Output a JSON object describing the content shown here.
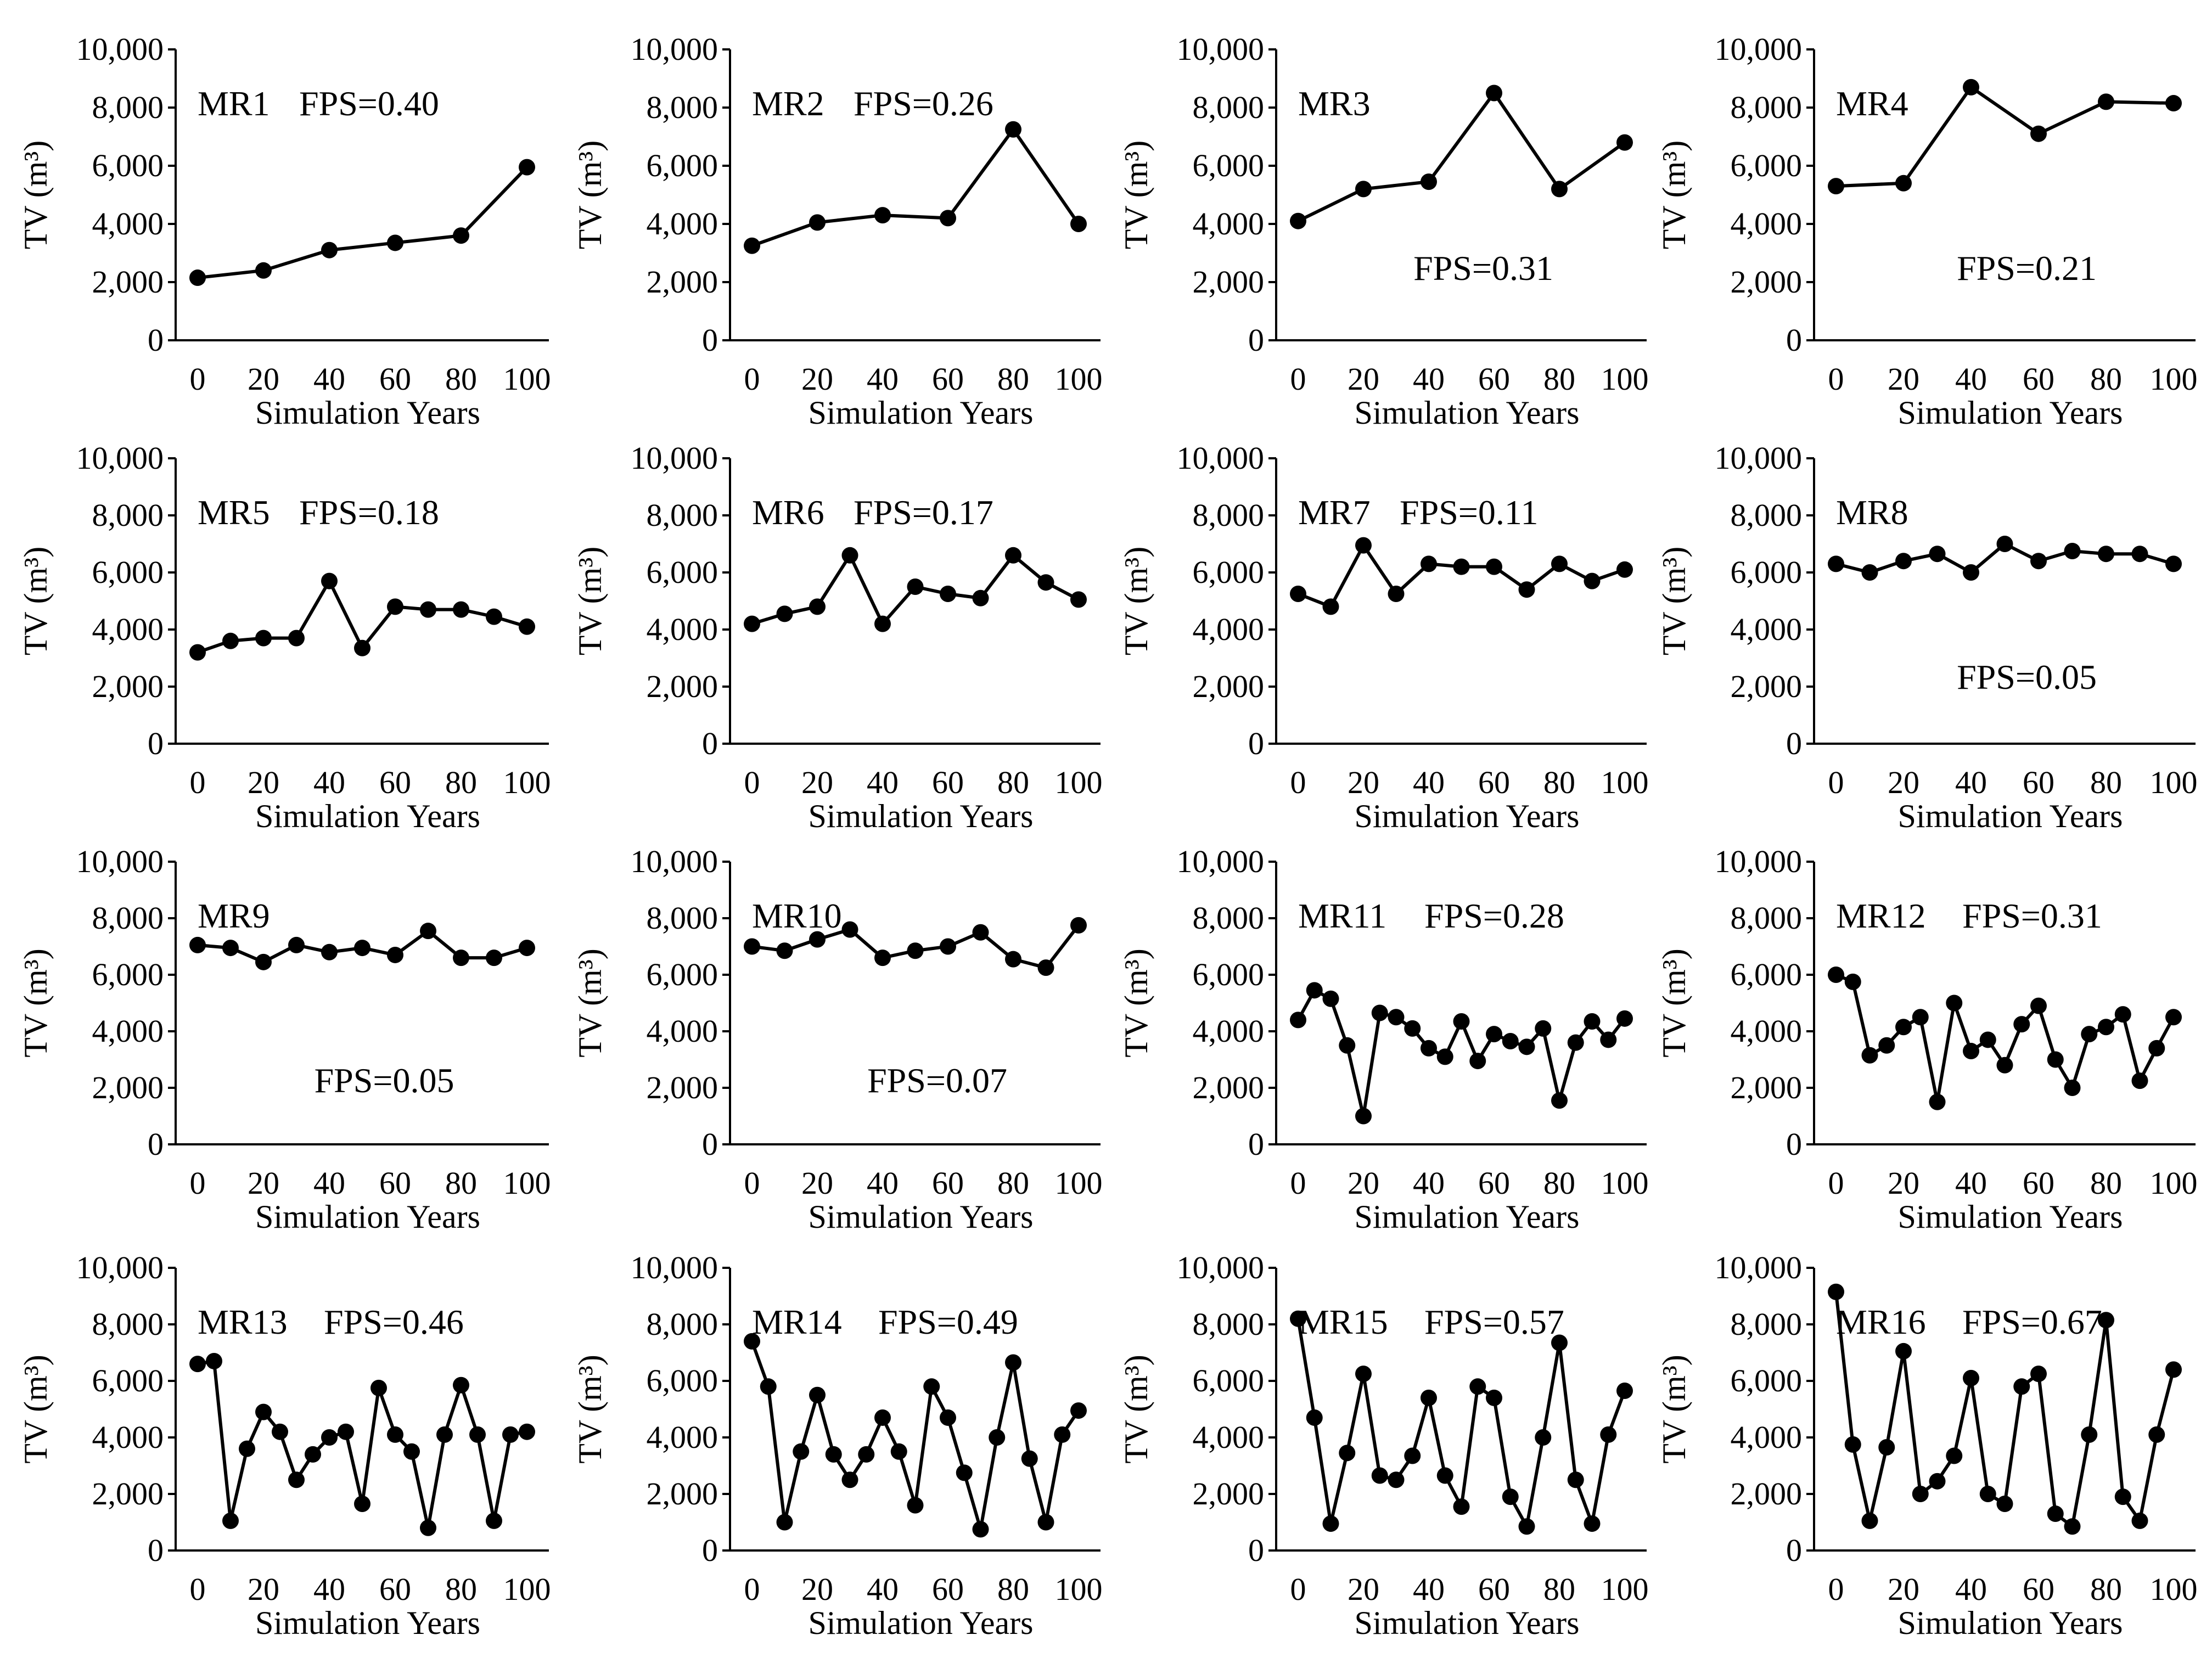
{
  "figure": {
    "title": ""
  },
  "style": {
    "line_color": "#000000",
    "marker_color": "#000000",
    "background": "#ffffff"
  },
  "chart_data": [
    {
      "type": "line",
      "panel": "MR1",
      "label": "MR1",
      "fps": "FPS=0.40",
      "x": [
        0,
        20,
        40,
        60,
        80,
        100
      ],
      "values": [
        2150,
        2400,
        3100,
        3350,
        3600,
        5950
      ],
      "xlabel": "Simulation Years",
      "ylabel": "TV (m³)",
      "ylim": [
        0,
        10000
      ],
      "xticks": [
        "0",
        "20",
        "40",
        "60",
        "80",
        "100"
      ],
      "yticks": [
        "0",
        "2,000",
        "4,000",
        "6,000",
        "8,000",
        "10,000"
      ]
    },
    {
      "type": "line",
      "panel": "MR2",
      "label": "MR2",
      "fps": "FPS=0.26",
      "x": [
        0,
        20,
        40,
        60,
        80,
        100
      ],
      "values": [
        3250,
        4050,
        4300,
        4200,
        7250,
        4000
      ],
      "xlabel": "Simulation Years",
      "ylabel": "TV (m³)",
      "ylim": [
        0,
        10000
      ],
      "xticks": [
        "0",
        "20",
        "40",
        "60",
        "80",
        "100"
      ],
      "yticks": [
        "0",
        "2,000",
        "4,000",
        "6,000",
        "8,000",
        "10,000"
      ]
    },
    {
      "type": "line",
      "panel": "MR3",
      "label": "MR3",
      "fps": "FPS=0.31",
      "x": [
        0,
        20,
        40,
        60,
        80,
        100
      ],
      "values": [
        4100,
        5200,
        5450,
        8500,
        5200,
        6800
      ],
      "xlabel": "Simulation Years",
      "ylabel": "TV (m³)",
      "ylim": [
        0,
        10000
      ],
      "xticks": [
        "0",
        "20",
        "40",
        "60",
        "80",
        "100"
      ],
      "yticks": [
        "0",
        "2,000",
        "4,000",
        "6,000",
        "8,000",
        "10,000"
      ]
    },
    {
      "type": "line",
      "panel": "MR4",
      "label": "MR4",
      "fps": "FPS=0.21",
      "x": [
        0,
        20,
        40,
        60,
        80,
        100
      ],
      "values": [
        5300,
        5400,
        8700,
        7100,
        8200,
        8150
      ],
      "xlabel": "Simulation Years",
      "ylabel": "TV (m³)",
      "ylim": [
        0,
        10000
      ],
      "xticks": [
        "0",
        "20",
        "40",
        "60",
        "80",
        "100"
      ],
      "yticks": [
        "0",
        "2,000",
        "4,000",
        "6,000",
        "8,000",
        "10,000"
      ]
    },
    {
      "type": "line",
      "panel": "MR5",
      "label": "MR5",
      "fps": "FPS=0.18",
      "x": [
        0,
        10,
        20,
        30,
        40,
        50,
        60,
        70,
        80,
        90,
        100
      ],
      "values": [
        3200,
        3600,
        3700,
        3700,
        5700,
        3350,
        4800,
        4700,
        4700,
        4450,
        4100
      ],
      "xlabel": "Simulation Years",
      "ylabel": "TV (m³)",
      "ylim": [
        0,
        10000
      ],
      "xticks": [
        "0",
        "20",
        "40",
        "60",
        "80",
        "100"
      ],
      "yticks": [
        "0",
        "2,000",
        "4,000",
        "6,000",
        "8,000",
        "10,000"
      ]
    },
    {
      "type": "line",
      "panel": "MR6",
      "label": "MR6",
      "fps": "FPS=0.17",
      "x": [
        0,
        10,
        20,
        30,
        40,
        50,
        60,
        70,
        80,
        90,
        100
      ],
      "values": [
        4200,
        4550,
        4800,
        6600,
        4200,
        5500,
        5250,
        5100,
        6600,
        5650,
        5050
      ],
      "xlabel": "Simulation Years",
      "ylabel": "TV (m³)",
      "ylim": [
        0,
        10000
      ],
      "xticks": [
        "0",
        "20",
        "40",
        "60",
        "80",
        "100"
      ],
      "yticks": [
        "0",
        "2,000",
        "4,000",
        "6,000",
        "8,000",
        "10,000"
      ]
    },
    {
      "type": "line",
      "panel": "MR7",
      "label": "MR7",
      "fps": "FPS=0.11",
      "x": [
        0,
        10,
        20,
        30,
        40,
        50,
        60,
        70,
        80,
        90,
        100
      ],
      "values": [
        5250,
        4800,
        6950,
        5250,
        6300,
        6200,
        6200,
        5400,
        6300,
        5700,
        6100
      ],
      "xlabel": "Simulation Years",
      "ylabel": "TV (m³)",
      "ylim": [
        0,
        10000
      ],
      "xticks": [
        "0",
        "20",
        "40",
        "60",
        "80",
        "100"
      ],
      "yticks": [
        "0",
        "2,000",
        "4,000",
        "6,000",
        "8,000",
        "10,000"
      ]
    },
    {
      "type": "line",
      "panel": "MR8",
      "label": "MR8",
      "fps": "FPS=0.05",
      "x": [
        0,
        10,
        20,
        30,
        40,
        50,
        60,
        70,
        80,
        90,
        100
      ],
      "values": [
        6300,
        6000,
        6400,
        6650,
        6000,
        7000,
        6400,
        6750,
        6650,
        6650,
        6300
      ],
      "xlabel": "Simulation Years",
      "ylabel": "TV (m³)",
      "ylim": [
        0,
        10000
      ],
      "xticks": [
        "0",
        "20",
        "40",
        "60",
        "80",
        "100"
      ],
      "yticks": [
        "0",
        "2,000",
        "4,000",
        "6,000",
        "8,000",
        "10,000"
      ]
    },
    {
      "type": "line",
      "panel": "MR9",
      "label": "MR9",
      "fps": "FPS=0.05",
      "x": [
        0,
        10,
        20,
        30,
        40,
        50,
        60,
        70,
        80,
        90,
        100
      ],
      "values": [
        7050,
        6950,
        6450,
        7050,
        6800,
        6950,
        6700,
        7550,
        6600,
        6600,
        6950
      ],
      "xlabel": "Simulation Years",
      "ylabel": "TV (m³)",
      "ylim": [
        0,
        10000
      ],
      "xticks": [
        "0",
        "20",
        "40",
        "60",
        "80",
        "100"
      ],
      "yticks": [
        "0",
        "2,000",
        "4,000",
        "6,000",
        "8,000",
        "10,000"
      ]
    },
    {
      "type": "line",
      "panel": "MR10",
      "label": "MR10",
      "fps": "FPS=0.07",
      "x": [
        0,
        10,
        20,
        30,
        40,
        50,
        60,
        70,
        80,
        90,
        100
      ],
      "values": [
        7000,
        6850,
        7250,
        7600,
        6600,
        6850,
        7000,
        7500,
        6550,
        6250,
        7750
      ],
      "xlabel": "Simulation Years",
      "ylabel": "TV (m³)",
      "ylim": [
        0,
        10000
      ],
      "xticks": [
        "0",
        "20",
        "40",
        "60",
        "80",
        "100"
      ],
      "yticks": [
        "0",
        "2,000",
        "4,000",
        "6,000",
        "8,000",
        "10,000"
      ]
    },
    {
      "type": "line",
      "panel": "MR11",
      "label": "MR11",
      "fps": "FPS=0.28",
      "x": [
        0,
        5,
        10,
        15,
        20,
        25,
        30,
        35,
        40,
        45,
        50,
        55,
        60,
        65,
        70,
        75,
        80,
        85,
        90,
        95,
        100
      ],
      "values": [
        4400,
        5450,
        5150,
        3500,
        1000,
        4650,
        4500,
        4100,
        3400,
        3100,
        4350,
        2950,
        3900,
        3650,
        3450,
        4100,
        1550,
        3600,
        4350,
        3700,
        4450
      ],
      "xlabel": "Simulation Years",
      "ylabel": "TV (m³)",
      "ylim": [
        0,
        10000
      ],
      "xticks": [
        "0",
        "20",
        "40",
        "60",
        "80",
        "100"
      ],
      "yticks": [
        "0",
        "2,000",
        "4,000",
        "6,000",
        "8,000",
        "10,000"
      ]
    },
    {
      "type": "line",
      "panel": "MR12",
      "label": "MR12",
      "fps": "FPS=0.31",
      "x": [
        0,
        5,
        10,
        15,
        20,
        25,
        30,
        35,
        40,
        45,
        50,
        55,
        60,
        65,
        70,
        75,
        80,
        85,
        90,
        95,
        100
      ],
      "values": [
        6000,
        5750,
        3150,
        3500,
        4150,
        4500,
        1500,
        5000,
        3300,
        3700,
        2800,
        4250,
        4900,
        3000,
        2000,
        3900,
        4150,
        4600,
        2250,
        3400,
        4500
      ],
      "xlabel": "Simulation Years",
      "ylabel": "TV (m³)",
      "ylim": [
        0,
        10000
      ],
      "xticks": [
        "0",
        "20",
        "40",
        "60",
        "80",
        "100"
      ],
      "yticks": [
        "0",
        "2,000",
        "4,000",
        "6,000",
        "8,000",
        "10,000"
      ]
    },
    {
      "type": "line",
      "panel": "MR13",
      "label": "MR13",
      "fps": "FPS=0.46",
      "x": [
        0,
        5,
        10,
        15,
        20,
        25,
        30,
        35,
        40,
        45,
        50,
        55,
        60,
        65,
        70,
        75,
        80,
        85,
        90,
        95,
        100
      ],
      "values": [
        6600,
        6700,
        1050,
        3600,
        4900,
        4200,
        2500,
        3400,
        4000,
        4200,
        1650,
        5750,
        4100,
        3500,
        800,
        4100,
        5850,
        4100,
        1050,
        4100,
        4200
      ],
      "xlabel": "Simulation Years",
      "ylabel": "TV (m³)",
      "ylim": [
        0,
        10000
      ],
      "xticks": [
        "0",
        "20",
        "40",
        "60",
        "80",
        "100"
      ],
      "yticks": [
        "0",
        "2,000",
        "4,000",
        "6,000",
        "8,000",
        "10,000"
      ]
    },
    {
      "type": "line",
      "panel": "MR14",
      "label": "MR14",
      "fps": "FPS=0.49",
      "x": [
        0,
        5,
        10,
        15,
        20,
        25,
        30,
        35,
        40,
        45,
        50,
        55,
        60,
        65,
        70,
        75,
        80,
        85,
        90,
        95,
        100
      ],
      "values": [
        7400,
        5800,
        1000,
        3500,
        5500,
        3400,
        2500,
        3400,
        4700,
        3500,
        1600,
        5800,
        4700,
        2750,
        750,
        4000,
        6650,
        3250,
        1000,
        4100,
        4950
      ],
      "xlabel": "Simulation Years",
      "ylabel": "TV (m³)",
      "ylim": [
        0,
        10000
      ],
      "xticks": [
        "0",
        "20",
        "40",
        "60",
        "80",
        "100"
      ],
      "yticks": [
        "0",
        "2,000",
        "4,000",
        "6,000",
        "8,000",
        "10,000"
      ]
    },
    {
      "type": "line",
      "panel": "MR15",
      "label": "MR15",
      "fps": "FPS=0.57",
      "x": [
        0,
        5,
        10,
        15,
        20,
        25,
        30,
        35,
        40,
        45,
        50,
        55,
        60,
        65,
        70,
        75,
        80,
        85,
        90,
        95,
        100
      ],
      "values": [
        8200,
        4700,
        950,
        3450,
        6250,
        2650,
        2500,
        3350,
        5400,
        2650,
        1550,
        5800,
        5400,
        1900,
        850,
        4000,
        7350,
        2500,
        950,
        4100,
        5650
      ],
      "xlabel": "Simulation Years",
      "ylabel": "TV (m³)",
      "ylim": [
        0,
        10000
      ],
      "xticks": [
        "0",
        "20",
        "40",
        "60",
        "80",
        "100"
      ],
      "yticks": [
        "0",
        "2,000",
        "4,000",
        "6,000",
        "8,000",
        "10,000"
      ]
    },
    {
      "type": "line",
      "panel": "MR16",
      "label": "MR16",
      "fps": "FPS=0.67",
      "x": [
        0,
        5,
        10,
        15,
        20,
        25,
        30,
        35,
        40,
        45,
        50,
        55,
        60,
        65,
        70,
        75,
        80,
        85,
        90,
        95,
        100
      ],
      "values": [
        9150,
        3750,
        1050,
        3650,
        7050,
        2000,
        2450,
        3350,
        6100,
        2000,
        1650,
        5800,
        6250,
        1300,
        850,
        4100,
        8150,
        1900,
        1050,
        4100,
        6400
      ],
      "xlabel": "Simulation Years",
      "ylabel": "TV (m³)",
      "ylim": [
        0,
        10000
      ],
      "xticks": [
        "0",
        "20",
        "40",
        "60",
        "80",
        "100"
      ],
      "yticks": [
        "0",
        "2,000",
        "4,000",
        "6,000",
        "8,000",
        "10,000"
      ]
    }
  ]
}
